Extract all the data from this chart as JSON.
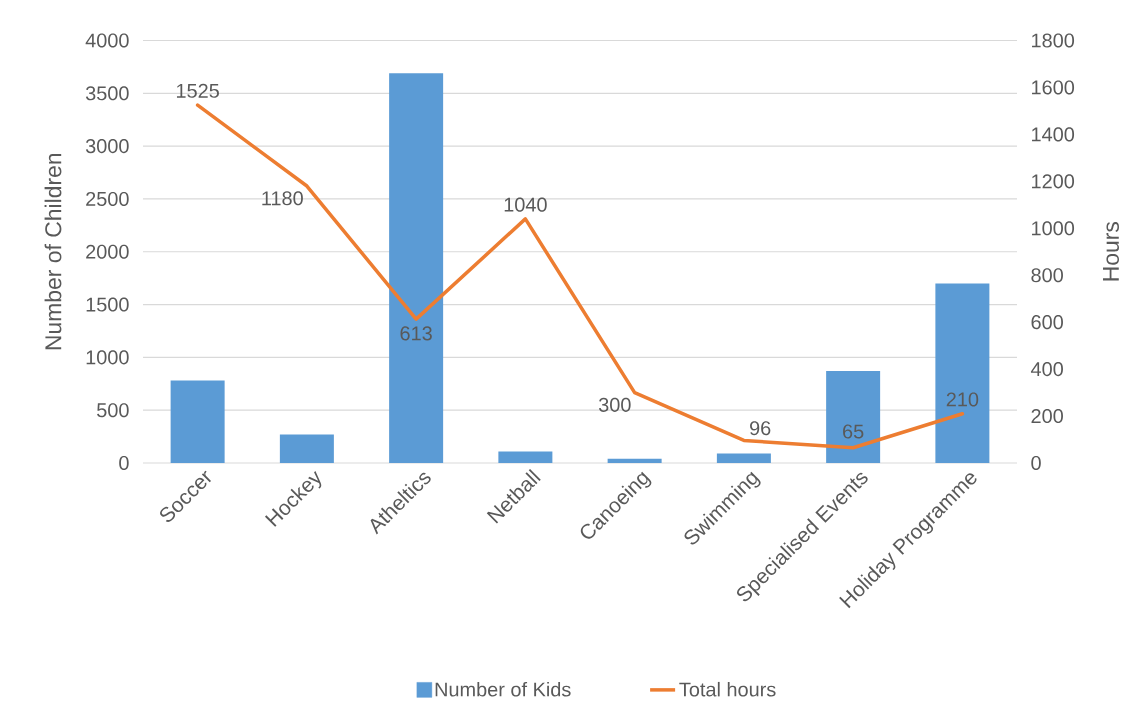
{
  "chart_data": {
    "type": "bar",
    "categories": [
      "Soccer",
      "Hockey",
      "Atheltics",
      "Netball",
      "Canoeing",
      "Swimming",
      "Specialised Events",
      "Holiday Programme"
    ],
    "series": [
      {
        "name": "Number of Kids",
        "color": "#5b9bd5",
        "values": [
          780,
          270,
          3690,
          110,
          40,
          90,
          870,
          1700
        ]
      },
      {
        "name": "Total hours",
        "type": "line",
        "axis": "y2",
        "color": "#ed7d31",
        "values": [
          1525,
          1180,
          613,
          1040,
          300,
          96,
          65,
          210
        ],
        "value_labels": [
          "1525",
          "1180",
          "613",
          "1040",
          "300",
          "96",
          "65",
          "210"
        ]
      }
    ],
    "ylabel": "Number of Children",
    "y2label": "Hours",
    "ylim": [
      0,
      4000
    ],
    "yticks": [
      0,
      500,
      1000,
      1500,
      2000,
      2500,
      3000,
      3500,
      4000
    ],
    "y2lim": [
      0,
      1800
    ],
    "y2ticks": [
      0,
      200,
      400,
      600,
      800,
      1000,
      1200,
      1400,
      1600,
      1800
    ],
    "grid": "y",
    "legend": "bottom"
  }
}
